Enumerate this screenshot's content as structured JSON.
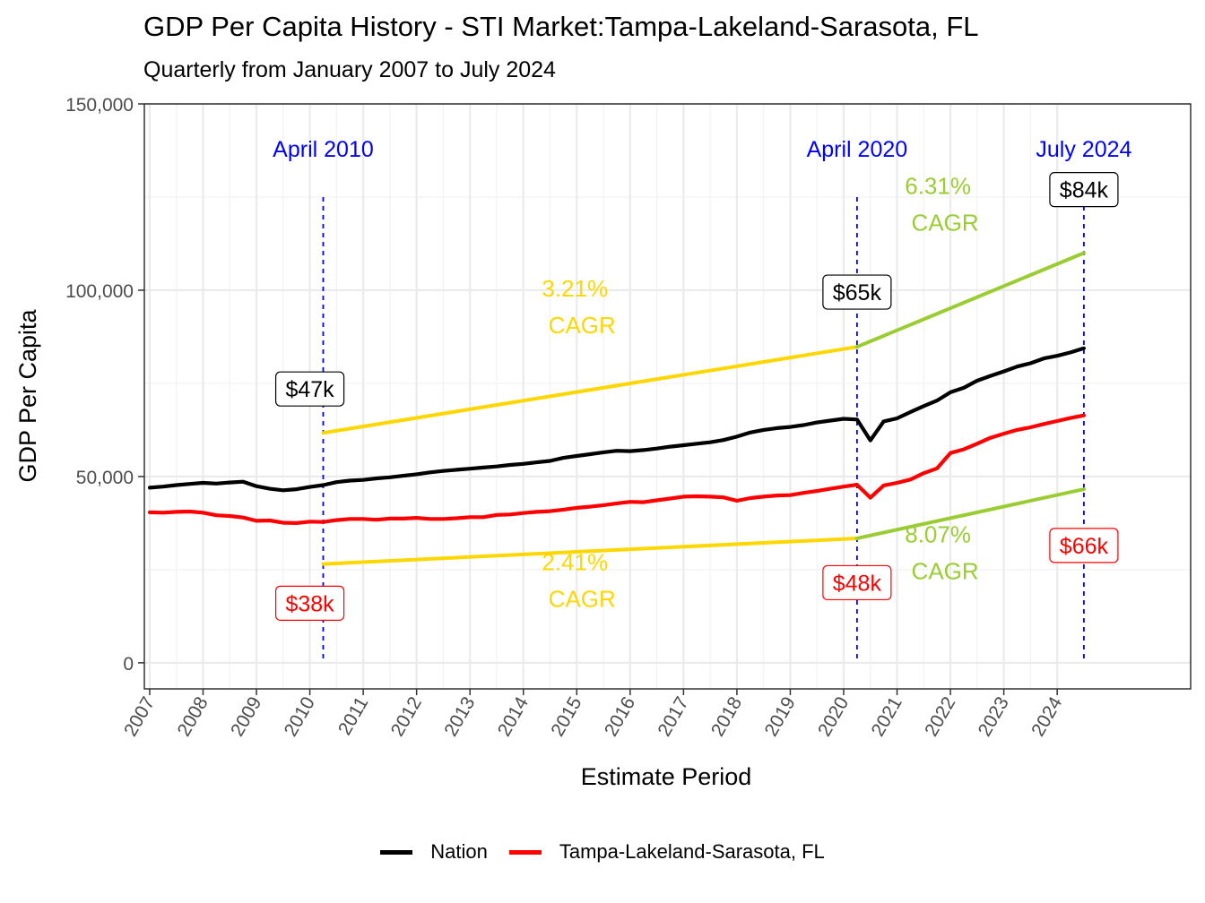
{
  "chart_data": {
    "type": "line",
    "title": "GDP Per Capita History - STI Market:Tampa-Lakeland-Sarasota, FL",
    "subtitle": "Quarterly from January 2007 to July 2024",
    "xlabel": "Estimate Period",
    "ylabel": "GDP Per Capita",
    "ylim": [
      -7000,
      150000
    ],
    "y_ticks": [
      0,
      50000,
      100000,
      150000
    ],
    "y_tick_labels": [
      "0",
      "50,000",
      "100,000",
      "150,000"
    ],
    "x_ticks": [
      2007,
      2008,
      2009,
      2010,
      2011,
      2012,
      2013,
      2014,
      2015,
      2016,
      2017,
      2018,
      2019,
      2020,
      2021,
      2022,
      2023,
      2024
    ],
    "x_tick_labels": [
      "2007",
      "2008",
      "2009",
      "2010",
      "2011",
      "2012",
      "2013",
      "2014",
      "2015",
      "2016",
      "2017",
      "2018",
      "2019",
      "2020",
      "2021",
      "2022",
      "2023",
      "2024"
    ],
    "xlim": [
      2006.9,
      2026.5
    ],
    "grid": true,
    "legend_position": "bottom",
    "series": [
      {
        "name": "Nation",
        "color": "#000000",
        "points": [
          [
            2007.0,
            47000
          ],
          [
            2007.25,
            47300
          ],
          [
            2007.5,
            47700
          ],
          [
            2007.75,
            48000
          ],
          [
            2008.0,
            48300
          ],
          [
            2008.25,
            48100
          ],
          [
            2008.5,
            48400
          ],
          [
            2008.75,
            48600
          ],
          [
            2009.0,
            47400
          ],
          [
            2009.25,
            46700
          ],
          [
            2009.5,
            46300
          ],
          [
            2009.75,
            46600
          ],
          [
            2010.0,
            47200
          ],
          [
            2010.25,
            47700
          ],
          [
            2010.5,
            48500
          ],
          [
            2010.75,
            48900
          ],
          [
            2011.0,
            49100
          ],
          [
            2011.25,
            49500
          ],
          [
            2011.5,
            49800
          ],
          [
            2011.75,
            50200
          ],
          [
            2012.0,
            50600
          ],
          [
            2012.25,
            51100
          ],
          [
            2012.5,
            51500
          ],
          [
            2012.75,
            51800
          ],
          [
            2013.0,
            52100
          ],
          [
            2013.25,
            52400
          ],
          [
            2013.5,
            52700
          ],
          [
            2013.75,
            53100
          ],
          [
            2014.0,
            53400
          ],
          [
            2014.25,
            53800
          ],
          [
            2014.5,
            54200
          ],
          [
            2014.75,
            55000
          ],
          [
            2015.0,
            55500
          ],
          [
            2015.25,
            56000
          ],
          [
            2015.5,
            56500
          ],
          [
            2015.75,
            56900
          ],
          [
            2016.0,
            56800
          ],
          [
            2016.25,
            57100
          ],
          [
            2016.5,
            57500
          ],
          [
            2016.75,
            58000
          ],
          [
            2017.0,
            58400
          ],
          [
            2017.25,
            58800
          ],
          [
            2017.5,
            59200
          ],
          [
            2017.75,
            59800
          ],
          [
            2018.0,
            60700
          ],
          [
            2018.25,
            61800
          ],
          [
            2018.5,
            62500
          ],
          [
            2018.75,
            63000
          ],
          [
            2019.0,
            63300
          ],
          [
            2019.25,
            63800
          ],
          [
            2019.5,
            64500
          ],
          [
            2019.75,
            65000
          ],
          [
            2020.0,
            65500
          ],
          [
            2020.25,
            65300
          ],
          [
            2020.5,
            59700
          ],
          [
            2020.75,
            64800
          ],
          [
            2021.0,
            65600
          ],
          [
            2021.25,
            67300
          ],
          [
            2021.5,
            68900
          ],
          [
            2021.75,
            70400
          ],
          [
            2022.0,
            72600
          ],
          [
            2022.25,
            73800
          ],
          [
            2022.5,
            75700
          ],
          [
            2022.75,
            77000
          ],
          [
            2023.0,
            78200
          ],
          [
            2023.25,
            79500
          ],
          [
            2023.5,
            80400
          ],
          [
            2023.75,
            81700
          ],
          [
            2024.0,
            82400
          ],
          [
            2024.25,
            83300
          ],
          [
            2024.5,
            84400
          ]
        ]
      },
      {
        "name": "Tampa-Lakeland-Sarasota, FL",
        "color": "#ff0000",
        "points": [
          [
            2007.0,
            40400
          ],
          [
            2007.25,
            40300
          ],
          [
            2007.5,
            40500
          ],
          [
            2007.75,
            40600
          ],
          [
            2008.0,
            40300
          ],
          [
            2008.25,
            39600
          ],
          [
            2008.5,
            39400
          ],
          [
            2008.75,
            39000
          ],
          [
            2009.0,
            38100
          ],
          [
            2009.25,
            38200
          ],
          [
            2009.5,
            37600
          ],
          [
            2009.75,
            37500
          ],
          [
            2010.0,
            37900
          ],
          [
            2010.25,
            37800
          ],
          [
            2010.5,
            38300
          ],
          [
            2010.75,
            38600
          ],
          [
            2011.0,
            38600
          ],
          [
            2011.25,
            38400
          ],
          [
            2011.5,
            38700
          ],
          [
            2011.75,
            38700
          ],
          [
            2012.0,
            38900
          ],
          [
            2012.25,
            38600
          ],
          [
            2012.5,
            38600
          ],
          [
            2012.75,
            38800
          ],
          [
            2013.0,
            39100
          ],
          [
            2013.25,
            39100
          ],
          [
            2013.5,
            39700
          ],
          [
            2013.75,
            39800
          ],
          [
            2014.0,
            40200
          ],
          [
            2014.25,
            40500
          ],
          [
            2014.5,
            40700
          ],
          [
            2014.75,
            41100
          ],
          [
            2015.0,
            41600
          ],
          [
            2015.25,
            41900
          ],
          [
            2015.5,
            42300
          ],
          [
            2015.75,
            42800
          ],
          [
            2016.0,
            43200
          ],
          [
            2016.25,
            43100
          ],
          [
            2016.5,
            43600
          ],
          [
            2016.75,
            44100
          ],
          [
            2017.0,
            44600
          ],
          [
            2017.25,
            44700
          ],
          [
            2017.5,
            44600
          ],
          [
            2017.75,
            44400
          ],
          [
            2018.0,
            43500
          ],
          [
            2018.25,
            44200
          ],
          [
            2018.5,
            44600
          ],
          [
            2018.75,
            44900
          ],
          [
            2019.0,
            45000
          ],
          [
            2019.25,
            45600
          ],
          [
            2019.5,
            46100
          ],
          [
            2019.75,
            46700
          ],
          [
            2020.0,
            47300
          ],
          [
            2020.25,
            47800
          ],
          [
            2020.5,
            44300
          ],
          [
            2020.75,
            47600
          ],
          [
            2021.0,
            48300
          ],
          [
            2021.25,
            49200
          ],
          [
            2021.5,
            50900
          ],
          [
            2021.75,
            52200
          ],
          [
            2022.0,
            56300
          ],
          [
            2022.25,
            57300
          ],
          [
            2022.5,
            58800
          ],
          [
            2022.75,
            60400
          ],
          [
            2023.0,
            61500
          ],
          [
            2023.25,
            62500
          ],
          [
            2023.5,
            63200
          ],
          [
            2023.75,
            64100
          ],
          [
            2024.0,
            64900
          ],
          [
            2024.25,
            65700
          ],
          [
            2024.5,
            66400
          ]
        ]
      }
    ],
    "cagr_lines": [
      {
        "from": [
          2010.25,
          61700
        ],
        "to": [
          2020.25,
          84800
        ],
        "color": "#ffd700"
      },
      {
        "from": [
          2020.25,
          84800
        ],
        "to": [
          2024.5,
          110000
        ],
        "color": "#9acd32"
      },
      {
        "from": [
          2010.25,
          26500
        ],
        "to": [
          2020.25,
          33400
        ],
        "color": "#ffd700"
      },
      {
        "from": [
          2020.25,
          33400
        ],
        "to": [
          2024.5,
          46600
        ],
        "color": "#9acd32"
      }
    ],
    "period_markers": [
      {
        "x": 2010.25,
        "label": "April 2010"
      },
      {
        "x": 2020.25,
        "label": "April 2020"
      },
      {
        "x": 2024.5,
        "label": "July 2024"
      }
    ],
    "marker_label_y": 138000,
    "value_labels": [
      {
        "x": 2010.0,
        "y": 73500,
        "text": "$47k",
        "color": "#000000"
      },
      {
        "x": 2020.25,
        "y": 99500,
        "text": "$65k",
        "color": "#000000"
      },
      {
        "x": 2024.5,
        "y": 127000,
        "text": "$84k",
        "color": "#000000"
      },
      {
        "x": 2010.0,
        "y": 16000,
        "text": "$38k",
        "color": "#ff0000"
      },
      {
        "x": 2020.25,
        "y": 21500,
        "text": "$48k",
        "color": "#ff0000"
      },
      {
        "x": 2024.5,
        "y": 31500,
        "text": "$66k",
        "color": "#ff0000"
      }
    ],
    "cagr_labels": [
      {
        "x": 2015.1,
        "y": 94000,
        "rate": "3.21%",
        "suffix": "CAGR",
        "color": "#ffd700"
      },
      {
        "x": 2021.9,
        "y": 121500,
        "rate": "6.31%",
        "suffix": "CAGR",
        "color": "#9acd32"
      },
      {
        "x": 2015.1,
        "y": 20500,
        "rate": "2.41%",
        "suffix": "CAGR",
        "color": "#ffd700"
      },
      {
        "x": 2021.9,
        "y": 28000,
        "rate": "8.07%",
        "suffix": "CAGR",
        "color": "#9acd32"
      }
    ]
  },
  "legend": {
    "items": [
      {
        "label": "Nation",
        "color": "#000000"
      },
      {
        "label": "Tampa-Lakeland-Sarasota, FL",
        "color": "#ff0000"
      }
    ]
  }
}
